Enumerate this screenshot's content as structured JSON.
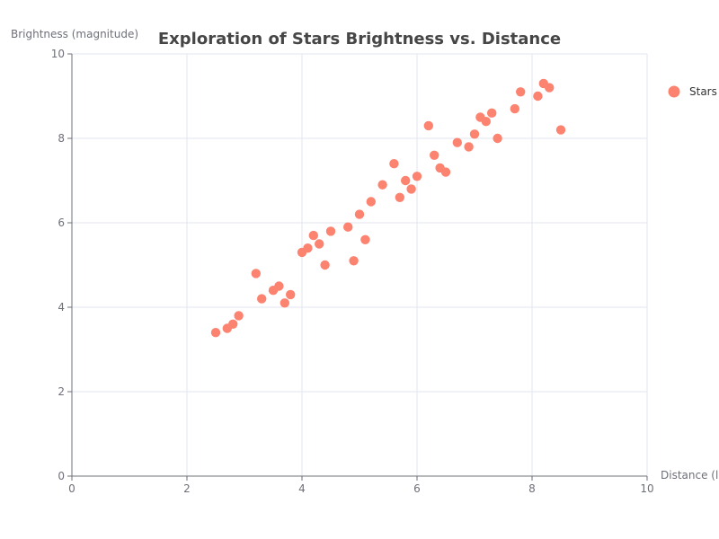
{
  "chart_data": {
    "type": "scatter",
    "title": "Exploration of Stars Brightness vs. Distance",
    "xlabel": "Distance (light-years)",
    "ylabel": "Brightness (magnitude)",
    "xlim": [
      0,
      10
    ],
    "ylim": [
      0,
      10
    ],
    "x_ticks": [
      "0",
      "2",
      "4",
      "6",
      "8",
      "10"
    ],
    "y_ticks": [
      "0",
      "2",
      "4",
      "6",
      "8",
      "10"
    ],
    "grid": true,
    "legend_position": "right",
    "series": [
      {
        "name": "Stars",
        "color": "#fc8370",
        "points": [
          [
            2.5,
            3.4
          ],
          [
            2.7,
            3.5
          ],
          [
            2.8,
            3.6
          ],
          [
            2.9,
            3.8
          ],
          [
            3.2,
            4.8
          ],
          [
            3.3,
            4.2
          ],
          [
            3.5,
            4.4
          ],
          [
            3.6,
            4.5
          ],
          [
            3.7,
            4.1
          ],
          [
            3.8,
            4.3
          ],
          [
            4.0,
            5.3
          ],
          [
            4.1,
            5.4
          ],
          [
            4.2,
            5.7
          ],
          [
            4.3,
            5.5
          ],
          [
            4.4,
            5.0
          ],
          [
            4.5,
            5.8
          ],
          [
            4.8,
            5.9
          ],
          [
            4.9,
            5.1
          ],
          [
            5.0,
            6.2
          ],
          [
            5.1,
            5.6
          ],
          [
            5.2,
            6.5
          ],
          [
            5.4,
            6.9
          ],
          [
            5.6,
            7.4
          ],
          [
            5.7,
            6.6
          ],
          [
            5.8,
            7.0
          ],
          [
            5.9,
            6.8
          ],
          [
            6.0,
            7.1
          ],
          [
            6.2,
            8.3
          ],
          [
            6.3,
            7.6
          ],
          [
            6.4,
            7.3
          ],
          [
            6.5,
            7.2
          ],
          [
            6.7,
            7.9
          ],
          [
            6.9,
            7.8
          ],
          [
            7.0,
            8.1
          ],
          [
            7.1,
            8.5
          ],
          [
            7.2,
            8.4
          ],
          [
            7.3,
            8.6
          ],
          [
            7.4,
            8.0
          ],
          [
            7.7,
            8.7
          ],
          [
            7.8,
            9.1
          ],
          [
            8.1,
            9.0
          ],
          [
            8.2,
            9.3
          ],
          [
            8.3,
            9.2
          ],
          [
            8.5,
            8.2
          ]
        ]
      }
    ]
  }
}
